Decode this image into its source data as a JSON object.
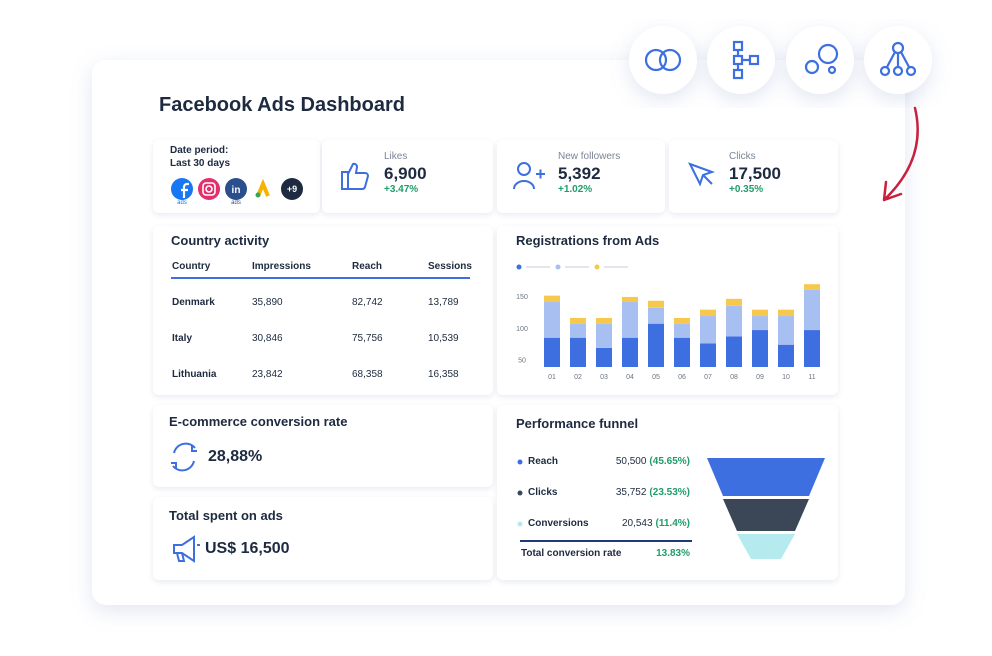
{
  "header": {
    "title": "Facebook Ads Dashboard"
  },
  "date_period": {
    "label": "Date period:",
    "value": "Last 30 days",
    "logo_captions": [
      "ads",
      "ads"
    ],
    "linkedin_glyph": "in",
    "more": "+9"
  },
  "kpis": [
    {
      "label": "Likes",
      "value": "6,900",
      "change": "+3.47%"
    },
    {
      "label": "New followers",
      "value": "5,392",
      "change": "+1.02%"
    },
    {
      "label": "Clicks",
      "value": "17,500",
      "change": "+0.35%"
    }
  ],
  "country_activity": {
    "title": "Country activity",
    "columns": [
      "Country",
      "Impressions",
      "Reach",
      "Sessions"
    ],
    "rows": [
      [
        "Denmark",
        "35,890",
        "82,742",
        "13,789"
      ],
      [
        "Italy",
        "30,846",
        "75,756",
        "10,539"
      ],
      [
        "Lithuania",
        "23,842",
        "68,358",
        "16,358"
      ]
    ]
  },
  "registrations_chart": {
    "type": "bar",
    "title": "Registrations from Ads",
    "categories": [
      "01",
      "02",
      "03",
      "04",
      "05",
      "06",
      "07",
      "08",
      "09",
      "10",
      "11"
    ],
    "series": [
      {
        "color": "#3d6fe0",
        "values": [
          86,
          86,
          70,
          86,
          108,
          86,
          77,
          88,
          98,
          75,
          98
        ]
      },
      {
        "color": "#a8c0f1",
        "values": [
          56,
          22,
          38,
          56,
          25,
          22,
          43,
          48,
          22,
          45,
          63
        ]
      },
      {
        "color": "#f6c94e",
        "values": [
          10,
          9,
          9,
          8,
          11,
          9,
          10,
          11,
          10,
          10,
          9
        ]
      }
    ],
    "ylim": [
      40,
      175
    ],
    "yticks": [
      50,
      100,
      150
    ]
  },
  "ecommerce": {
    "title": "E-commerce conversion rate",
    "value": "28,88%"
  },
  "total_spent": {
    "title": "Total spent on ads",
    "value": "US$ 16,500"
  },
  "funnel": {
    "title": "Performance funnel",
    "rows": [
      {
        "label": "Reach",
        "value": "50,500",
        "percent": "(45.65%)",
        "color": "#3d6fe0"
      },
      {
        "label": "Clicks",
        "value": "35,752",
        "percent": "(23.53%)",
        "color": "#3b4656"
      },
      {
        "label": "Conversions",
        "value": "20,543",
        "percent": "(11.4%)",
        "color": "#b5ebee"
      }
    ],
    "total": {
      "label": "Total conversion rate",
      "value": "13.83%"
    }
  }
}
